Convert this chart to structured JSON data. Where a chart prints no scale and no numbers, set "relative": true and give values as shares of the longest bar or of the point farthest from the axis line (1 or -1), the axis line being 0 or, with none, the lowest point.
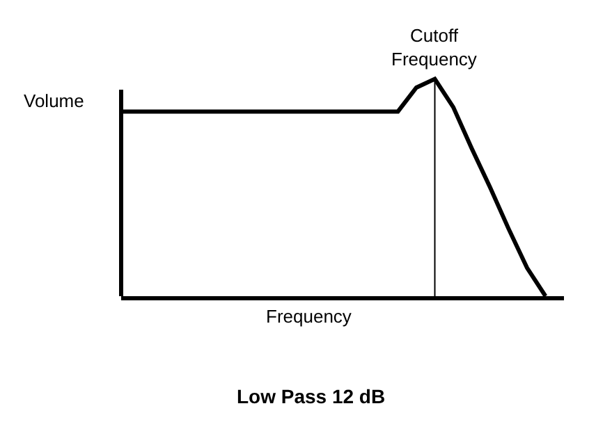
{
  "chart_data": {
    "type": "line",
    "title": "Low Pass 12 dB",
    "xlabel": "Frequency",
    "ylabel": "Volume",
    "relative": true,
    "categories": [
      null,
      null,
      null,
      null,
      null,
      null,
      null,
      null,
      null,
      null,
      null,
      null,
      null,
      null,
      null,
      null,
      null,
      null,
      null,
      null,
      null,
      null,
      null,
      null,
      null
    ],
    "series": [
      {
        "color": "#000000",
        "values": [
          0.85,
          0.85,
          0.85,
          0.85,
          0.85,
          0.85,
          0.85,
          0.85,
          0.85,
          0.85,
          0.85,
          0.85,
          0.85,
          0.85,
          0.85,
          0.85,
          0.96,
          1,
          0.87,
          0.68,
          0.5,
          0.31,
          0.13,
          0,
          null
        ]
      }
    ],
    "annotations": [
      "Cutoff Frequency"
    ],
    "marker": "none",
    "line_style": "solid"
  }
}
